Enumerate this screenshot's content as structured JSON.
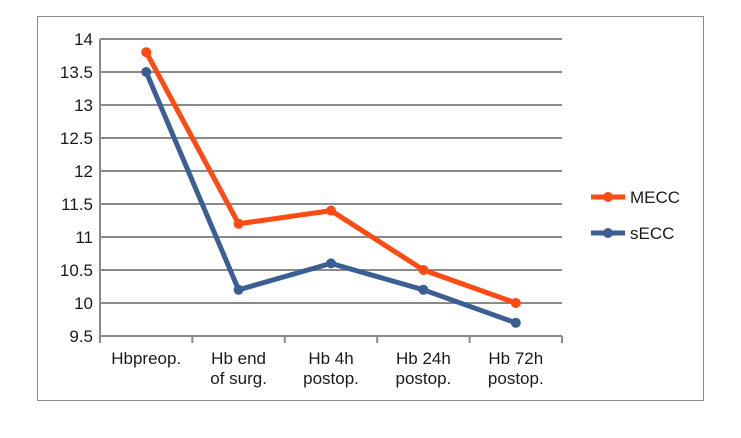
{
  "chart_data": {
    "type": "line",
    "title": "",
    "xlabel": "",
    "ylabel": "",
    "categories": [
      [
        "Hbpreop."
      ],
      [
        "Hb end",
        "of surg."
      ],
      [
        "Hb 4h",
        "postop."
      ],
      [
        "Hb 24h",
        "postop."
      ],
      [
        "Hb 72h",
        "postop."
      ]
    ],
    "yticks": [
      "9.5",
      "10",
      "10.5",
      "11",
      "11.5",
      "12",
      "12.5",
      "13",
      "13.5",
      "14"
    ],
    "ylim": [
      9.5,
      14
    ],
    "grid": true,
    "legend_position": "right",
    "series": [
      {
        "name": "MECC",
        "color": "#ff4a14",
        "values": [
          13.8,
          11.2,
          11.4,
          10.5,
          10.0
        ]
      },
      {
        "name": "sECC",
        "color": "#3b5f94",
        "values": [
          13.5,
          10.2,
          10.6,
          10.2,
          9.7
        ]
      }
    ]
  }
}
